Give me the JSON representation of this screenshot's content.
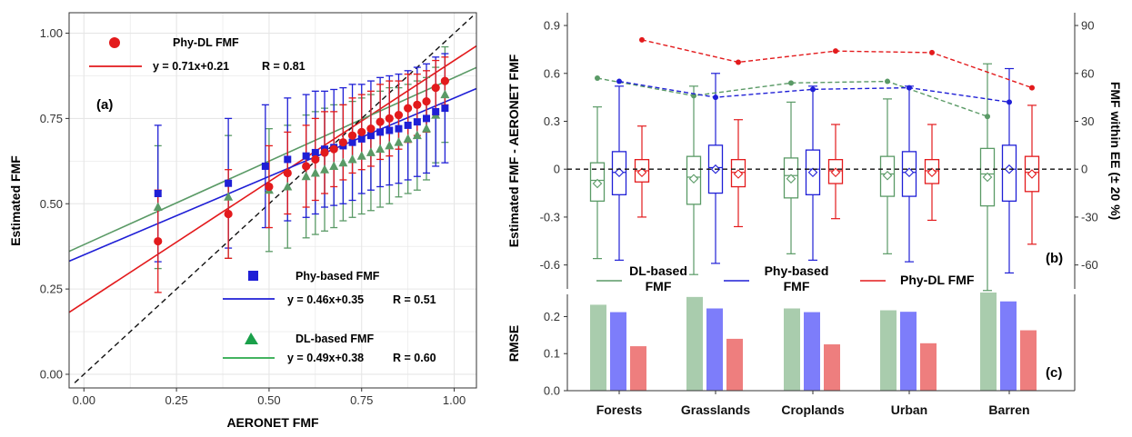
{
  "colors": {
    "phydl": "#e31a1c",
    "phy": "#1f1fd6",
    "dl": "#5a9a66",
    "dl_line": "#2aa84a",
    "grid": "#e6e6e6"
  },
  "chart_data": [
    {
      "type": "scatter",
      "panel": "(a)",
      "xlabel": "AERONET FMF",
      "ylabel": "Estimated FMF",
      "xlim": [
        -0.04,
        1.06
      ],
      "ylim": [
        -0.04,
        1.06
      ],
      "x_ticks": [
        "0.00",
        "0.25",
        "0.50",
        "0.75",
        "1.00"
      ],
      "y_ticks": [
        "0.00",
        "0.25",
        "0.50",
        "0.75",
        "1.00"
      ],
      "grid": true,
      "identity_line": true,
      "series": [
        {
          "name": "Phy-DL FMF",
          "key": "phydl",
          "marker": "circle",
          "fit": "y = 0.71x+0.21",
          "r": "R = 0.81",
          "slope": 0.71,
          "intercept": 0.21,
          "points": [
            [
              0.2,
              0.39,
              0.15
            ],
            [
              0.39,
              0.47,
              0.13
            ],
            [
              0.5,
              0.55,
              0.12
            ],
            [
              0.55,
              0.59,
              0.12
            ],
            [
              0.6,
              0.61,
              0.12
            ],
            [
              0.625,
              0.63,
              0.12
            ],
            [
              0.65,
              0.65,
              0.12
            ],
            [
              0.675,
              0.66,
              0.11
            ],
            [
              0.7,
              0.68,
              0.11
            ],
            [
              0.725,
              0.7,
              0.11
            ],
            [
              0.75,
              0.71,
              0.11
            ],
            [
              0.775,
              0.72,
              0.11
            ],
            [
              0.8,
              0.74,
              0.11
            ],
            [
              0.825,
              0.75,
              0.11
            ],
            [
              0.85,
              0.76,
              0.1
            ],
            [
              0.875,
              0.78,
              0.1
            ],
            [
              0.9,
              0.79,
              0.09
            ],
            [
              0.925,
              0.8,
              0.09
            ],
            [
              0.95,
              0.84,
              0.08
            ],
            [
              0.975,
              0.86,
              0.07
            ]
          ]
        },
        {
          "name": "Phy-based FMF",
          "key": "phy",
          "marker": "square",
          "fit": "y = 0.46x+0.35",
          "r": "R = 0.51",
          "slope": 0.46,
          "intercept": 0.35,
          "points": [
            [
              0.2,
              0.53,
              0.2
            ],
            [
              0.39,
              0.56,
              0.19
            ],
            [
              0.49,
              0.61,
              0.18
            ],
            [
              0.55,
              0.63,
              0.18
            ],
            [
              0.6,
              0.64,
              0.18
            ],
            [
              0.625,
              0.65,
              0.18
            ],
            [
              0.65,
              0.66,
              0.17
            ],
            [
              0.675,
              0.665,
              0.17
            ],
            [
              0.7,
              0.67,
              0.17
            ],
            [
              0.725,
              0.68,
              0.17
            ],
            [
              0.75,
              0.69,
              0.16
            ],
            [
              0.775,
              0.7,
              0.16
            ],
            [
              0.8,
              0.71,
              0.16
            ],
            [
              0.825,
              0.715,
              0.16
            ],
            [
              0.85,
              0.72,
              0.16
            ],
            [
              0.875,
              0.73,
              0.16
            ],
            [
              0.9,
              0.74,
              0.16
            ],
            [
              0.925,
              0.75,
              0.16
            ],
            [
              0.95,
              0.77,
              0.16
            ],
            [
              0.975,
              0.78,
              0.16
            ]
          ]
        },
        {
          "name": "DL-based FMF",
          "key": "dl",
          "marker": "triangle",
          "fit": "y = 0.49x+0.38",
          "r": "R = 0.60",
          "slope": 0.49,
          "intercept": 0.38,
          "points": [
            [
              0.2,
              0.49,
              0.18
            ],
            [
              0.39,
              0.52,
              0.18
            ],
            [
              0.5,
              0.54,
              0.18
            ],
            [
              0.55,
              0.55,
              0.18
            ],
            [
              0.6,
              0.58,
              0.18
            ],
            [
              0.625,
              0.59,
              0.18
            ],
            [
              0.65,
              0.6,
              0.18
            ],
            [
              0.675,
              0.61,
              0.18
            ],
            [
              0.7,
              0.62,
              0.17
            ],
            [
              0.725,
              0.63,
              0.17
            ],
            [
              0.75,
              0.64,
              0.17
            ],
            [
              0.775,
              0.65,
              0.17
            ],
            [
              0.8,
              0.66,
              0.17
            ],
            [
              0.825,
              0.67,
              0.17
            ],
            [
              0.85,
              0.68,
              0.16
            ],
            [
              0.875,
              0.69,
              0.16
            ],
            [
              0.9,
              0.7,
              0.16
            ],
            [
              0.925,
              0.72,
              0.15
            ],
            [
              0.95,
              0.76,
              0.14
            ],
            [
              0.975,
              0.82,
              0.14
            ]
          ]
        }
      ]
    },
    {
      "type": "box",
      "panel": "(b)",
      "ylabel": "Estimated FMF - AERONET FMF",
      "y2label": "FMF within EE (± 20 %)",
      "ylim": [
        -0.75,
        0.98
      ],
      "y_ticks": [
        "-0.6",
        "-0.3",
        "0",
        "0.3",
        "0.6",
        "0.9"
      ],
      "y2_ticks": [
        "-60",
        "-30",
        "0",
        "30",
        "60",
        "90"
      ],
      "zero_line": true,
      "categories": [
        "Forests",
        "Grasslands",
        "Croplands",
        "Urban",
        "Barren"
      ],
      "legend": [
        {
          "key": "dl",
          "line1": "DL-based",
          "line2": "FMF"
        },
        {
          "key": "phy",
          "line1": "Phy-based",
          "line2": "FMF"
        },
        {
          "key": "phydl",
          "line1": "Phy-DL FMF",
          "line2": ""
        }
      ],
      "series": [
        {
          "key": "dl",
          "boxes": [
            {
              "min": -0.56,
              "q1": -0.2,
              "median": -0.07,
              "q3": 0.04,
              "max": 0.39,
              "mean": -0.09
            },
            {
              "min": -0.66,
              "q1": -0.22,
              "median": -0.05,
              "q3": 0.08,
              "max": 0.52,
              "mean": -0.06
            },
            {
              "min": -0.53,
              "q1": -0.18,
              "median": -0.04,
              "q3": 0.07,
              "max": 0.42,
              "mean": -0.06
            },
            {
              "min": -0.53,
              "q1": -0.17,
              "median": -0.03,
              "q3": 0.08,
              "max": 0.44,
              "mean": -0.04
            },
            {
              "min": -0.76,
              "q1": -0.23,
              "median": -0.03,
              "q3": 0.13,
              "max": 0.66,
              "mean": -0.05
            }
          ],
          "ee_percent": [
            57,
            46,
            54,
            55,
            33
          ]
        },
        {
          "key": "phy",
          "boxes": [
            {
              "min": -0.57,
              "q1": -0.16,
              "median": -0.02,
              "q3": 0.11,
              "max": 0.52,
              "mean": -0.02
            },
            {
              "min": -0.59,
              "q1": -0.15,
              "median": 0.01,
              "q3": 0.15,
              "max": 0.6,
              "mean": 0.0
            },
            {
              "min": -0.57,
              "q1": -0.16,
              "median": 0.0,
              "q3": 0.12,
              "max": 0.52,
              "mean": -0.02
            },
            {
              "min": -0.58,
              "q1": -0.17,
              "median": -0.02,
              "q3": 0.11,
              "max": 0.52,
              "mean": -0.02
            },
            {
              "min": -0.65,
              "q1": -0.2,
              "median": 0.0,
              "q3": 0.15,
              "max": 0.63,
              "mean": 0.0
            }
          ],
          "ee_percent": [
            55,
            45,
            50,
            51,
            42
          ]
        },
        {
          "key": "phydl",
          "boxes": [
            {
              "min": -0.3,
              "q1": -0.08,
              "median": -0.01,
              "q3": 0.06,
              "max": 0.27,
              "mean": -0.02
            },
            {
              "min": -0.36,
              "q1": -0.11,
              "median": -0.02,
              "q3": 0.06,
              "max": 0.31,
              "mean": -0.03
            },
            {
              "min": -0.31,
              "q1": -0.09,
              "median": -0.01,
              "q3": 0.06,
              "max": 0.28,
              "mean": -0.02
            },
            {
              "min": -0.32,
              "q1": -0.09,
              "median": -0.01,
              "q3": 0.06,
              "max": 0.28,
              "mean": -0.02
            },
            {
              "min": -0.47,
              "q1": -0.14,
              "median": -0.02,
              "q3": 0.08,
              "max": 0.4,
              "mean": -0.03
            }
          ],
          "ee_percent": [
            81,
            67,
            74,
            73,
            51
          ]
        }
      ]
    },
    {
      "type": "bar",
      "panel": "(c)",
      "ylabel": "RMSE",
      "ylim": [
        0,
        0.26
      ],
      "y_ticks": [
        "0.0",
        "0.1",
        "0.2"
      ],
      "categories": [
        "Forests",
        "Grasslands",
        "Croplands",
        "Urban",
        "Barren"
      ],
      "series": [
        {
          "key": "dl",
          "name": "DL-based FMF",
          "values": [
            0.232,
            0.253,
            0.222,
            0.217,
            0.265
          ]
        },
        {
          "key": "phy",
          "name": "Phy-based FMF",
          "values": [
            0.212,
            0.222,
            0.212,
            0.213,
            0.241
          ]
        },
        {
          "key": "phydl",
          "name": "Phy-DL FMF",
          "values": [
            0.12,
            0.14,
            0.125,
            0.128,
            0.163
          ]
        }
      ]
    }
  ]
}
